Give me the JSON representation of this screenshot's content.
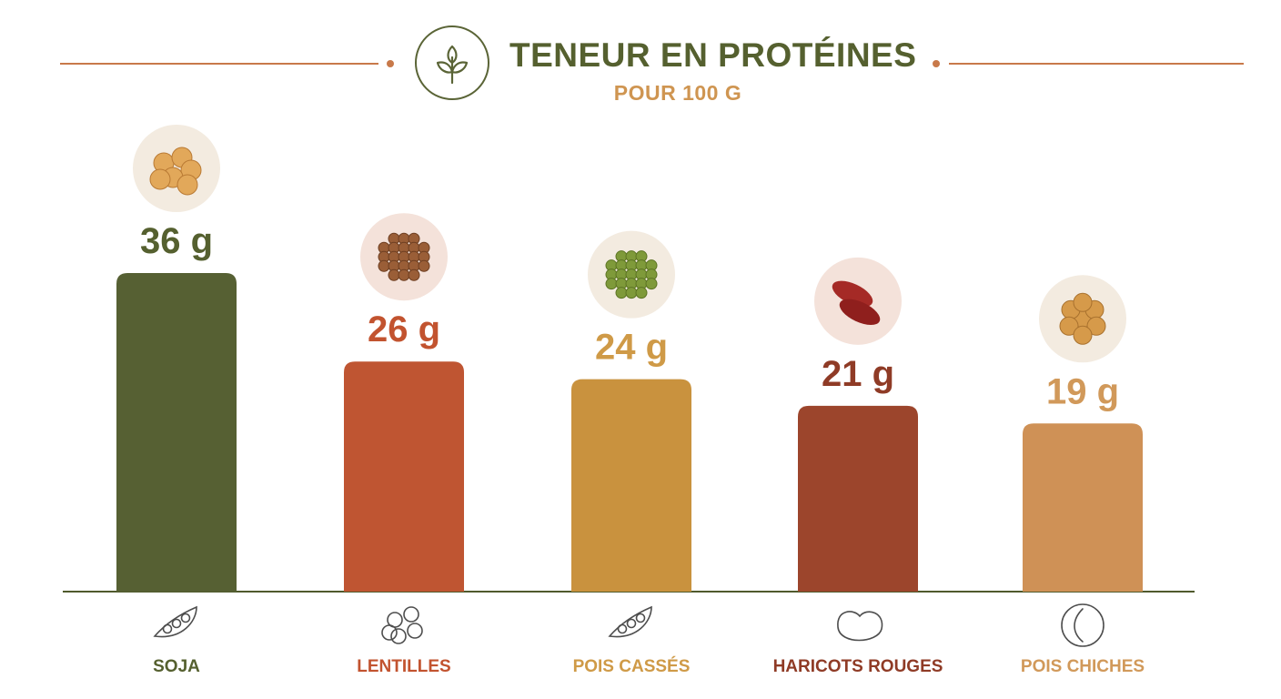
{
  "header": {
    "title": "TENEUR EN PROTÉINES",
    "subtitle": "POUR 100 G",
    "icon": "leaf-sprout-icon"
  },
  "chart_data": {
    "type": "bar",
    "title": "TENEUR EN PROTÉINES",
    "subtitle": "POUR 100 G",
    "xlabel": "",
    "ylabel": "",
    "unit": "g",
    "categories": [
      "SOJA",
      "LENTILLES",
      "POIS CASSÉS",
      "HARICOTS ROUGES",
      "POIS CHICHES"
    ],
    "values": [
      36,
      26,
      24,
      21,
      19
    ],
    "value_labels": [
      "36 g",
      "26 g",
      "24 g",
      "21 g",
      "19 g"
    ],
    "colors": [
      "#566033",
      "#bf5532",
      "#c9923e",
      "#9c452c",
      "#cf9156"
    ],
    "label_colors": [
      "#55602f",
      "#c2532f",
      "#cf9a47",
      "#8f3b26",
      "#d1995a"
    ],
    "icons": [
      "soybean-pod-icon",
      "lentils-icon",
      "pea-pod-icon",
      "kidney-bean-icon",
      "chickpea-icon"
    ],
    "photos": [
      "soybeans-photo",
      "lentils-photo",
      "split-peas-photo",
      "kidney-beans-photo",
      "chickpeas-photo"
    ],
    "ylim": [
      0,
      36
    ],
    "grid": false,
    "legend": "none"
  }
}
